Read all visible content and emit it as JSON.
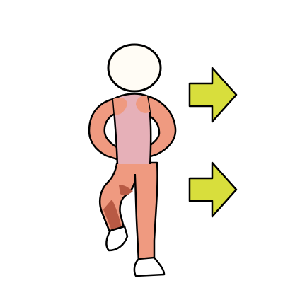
{
  "scene": {
    "subject": "figure-standing-on-one-leg",
    "icons": [
      "head-icon",
      "figure-body-icon",
      "right-arrow-icon",
      "right-arrow-icon"
    ]
  },
  "colors": {
    "background": "#ffffff",
    "outline": "#000000",
    "head_fill": "#fffcf5",
    "torso_fill": "#e6b0b8",
    "limb_fill": "#ef9a80",
    "limb_shadow": "#b85a44",
    "shoe_fill": "#ffffff",
    "arrow_fill": "#d8de3c"
  }
}
